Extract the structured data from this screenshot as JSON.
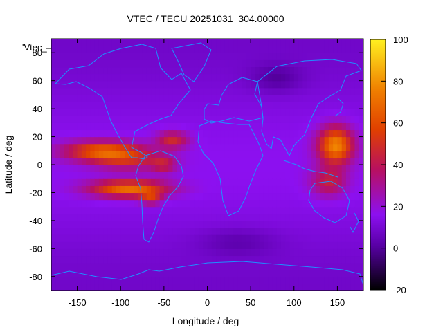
{
  "chart_data": {
    "type": "heatmap",
    "title": "VTEC / TECU 20251031_304.00000",
    "xlabel": "Longitude / deg",
    "ylabel": "Latitude / deg",
    "xlim": [
      -180,
      180
    ],
    "ylim": [
      -90,
      90
    ],
    "x_ticks": [
      "-150",
      "-100",
      "-50",
      "0",
      "50",
      "100",
      "150"
    ],
    "x_tick_values": [
      -150,
      -100,
      -50,
      0,
      50,
      100,
      150
    ],
    "y_ticks": [
      "-80",
      "-60",
      "-40",
      "-20",
      "0",
      "20",
      "40",
      "60",
      "80"
    ],
    "y_tick_values": [
      -80,
      -60,
      -40,
      -20,
      0,
      20,
      40,
      60,
      80
    ],
    "colorbar": {
      "range": [
        -20,
        100
      ],
      "ticks": [
        "-20",
        "0",
        "20",
        "40",
        "60",
        "80",
        "100"
      ],
      "tick_values": [
        -20,
        0,
        20,
        40,
        60,
        80,
        100
      ],
      "colormap": [
        "#000000",
        "#5a00a8",
        "#8c10f0",
        "#b81060",
        "#e04000",
        "#f08000",
        "#fff020"
      ]
    },
    "legend_label": "'Vtec_",
    "coastline_color": "#1e90ff",
    "grid": false,
    "features": [
      {
        "lon": -120,
        "lat": 10,
        "sx": 45,
        "sy": 7,
        "v": 50
      },
      {
        "lon": -90,
        "lat": 3,
        "sx": 40,
        "sy": 7,
        "v": 25
      },
      {
        "lon": -90,
        "lat": -17,
        "sx": 45,
        "sy": 6,
        "v": 55
      },
      {
        "lon": -40,
        "lat": 18,
        "sx": 18,
        "sy": 6,
        "v": 32
      },
      {
        "lon": -50,
        "lat": 0,
        "sx": 14,
        "sy": 6,
        "v": 22
      },
      {
        "lon": -65,
        "lat": -24,
        "sx": 12,
        "sy": 4,
        "v": 30
      },
      {
        "lon": 148,
        "lat": 14,
        "sx": 20,
        "sy": 13,
        "v": 62
      },
      {
        "lon": 140,
        "lat": -12,
        "sx": 20,
        "sy": 10,
        "v": 28
      },
      {
        "lon": 35,
        "lat": -55,
        "sx": 45,
        "sy": 10,
        "v": -8
      },
      {
        "lon": 80,
        "lat": 62,
        "sx": 30,
        "sy": 10,
        "v": -10
      }
    ]
  }
}
